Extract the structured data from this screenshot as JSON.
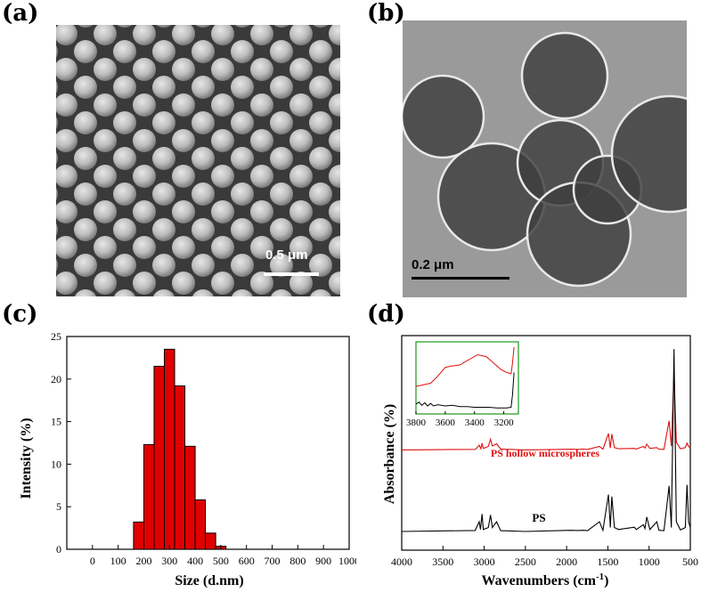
{
  "panels": {
    "a": {
      "label": "(a)",
      "scale_text": "0.5 μm"
    },
    "b": {
      "label": "(b)",
      "scale_text": "0.2 μm"
    },
    "c": {
      "label": "(c)"
    },
    "d": {
      "label": "(d)"
    }
  },
  "colors": {
    "bars": "#e00000",
    "red_spectrum": "#e01010",
    "black_spectrum": "#000000",
    "inset_frame": "#1a9a1a"
  },
  "chart_data": [
    {
      "type": "bar",
      "xlabel": "Size (d.nm)",
      "ylabel": "Intensity (%)",
      "xlim": [
        -100,
        1000
      ],
      "ylim": [
        0,
        25
      ],
      "x_ticks": [
        "0",
        "100",
        "200",
        "300",
        "400",
        "500",
        "600",
        "700",
        "800",
        "900",
        "1000"
      ],
      "y_ticks": [
        "0",
        "5",
        "10",
        "15",
        "20",
        "25"
      ],
      "bin_width": 40,
      "bins": [
        {
          "center": 180,
          "value": 3.2
        },
        {
          "center": 220,
          "value": 12.3
        },
        {
          "center": 260,
          "value": 21.5
        },
        {
          "center": 300,
          "value": 23.5
        },
        {
          "center": 340,
          "value": 19.2
        },
        {
          "center": 380,
          "value": 12.1
        },
        {
          "center": 420,
          "value": 5.8
        },
        {
          "center": 460,
          "value": 1.9
        },
        {
          "center": 500,
          "value": 0.35
        }
      ]
    },
    {
      "type": "line",
      "xlabel": "Wavenumbers (cm",
      "xlabel_sup": "-1",
      "xlabel_close": ")",
      "ylabel": "Absorbance (%)",
      "xlim": [
        4000,
        500
      ],
      "x_ticks": [
        "4000",
        "3500",
        "3000",
        "2500",
        "2000",
        "1500",
        "1000",
        "500"
      ],
      "series": [
        {
          "name": "PS hollow microspheres",
          "offset": 0.42,
          "points": [
            [
              4000,
              0
            ],
            [
              3110,
              0.003
            ],
            [
              3085,
              0.012
            ],
            [
              3060,
              0.025
            ],
            [
              3040,
              0.006
            ],
            [
              3026,
              0.035
            ],
            [
              3010,
              0.008
            ],
            [
              2950,
              0.018
            ],
            [
              2923,
              0.055
            ],
            [
              2900,
              0.02
            ],
            [
              2850,
              0.032
            ],
            [
              2800,
              0.005
            ],
            [
              2500,
              0
            ],
            [
              1950,
              0.004
            ],
            [
              1870,
              0.003
            ],
            [
              1800,
              0.004
            ],
            [
              1745,
              0.003
            ],
            [
              1602,
              0.018
            ],
            [
              1560,
              0.004
            ],
            [
              1493,
              0.085
            ],
            [
              1470,
              0.01
            ],
            [
              1452,
              0.082
            ],
            [
              1420,
              0.012
            ],
            [
              1370,
              0.006
            ],
            [
              1180,
              0.008
            ],
            [
              1155,
              0.005
            ],
            [
              1070,
              0.018
            ],
            [
              1050,
              0.01
            ],
            [
              1028,
              0.03
            ],
            [
              990,
              0.008
            ],
            [
              906,
              0.012
            ],
            [
              880,
              0.004
            ],
            [
              820,
              0.003
            ],
            [
              757,
              0.15
            ],
            [
              730,
              0.02
            ],
            [
              698,
              0.39
            ],
            [
              670,
              0.04
            ],
            [
              620,
              0.006
            ],
            [
              560,
              0.012
            ],
            [
              540,
              0.035
            ],
            [
              520,
              0.018
            ],
            [
              500,
              0.01
            ]
          ]
        },
        {
          "name": "PS",
          "offset": 0.0,
          "points": [
            [
              4000,
              0
            ],
            [
              3110,
              0.005
            ],
            [
              3083,
              0.03
            ],
            [
              3060,
              0.05
            ],
            [
              3045,
              0.01
            ],
            [
              3026,
              0.09
            ],
            [
              3010,
              0.01
            ],
            [
              2950,
              0.02
            ],
            [
              2923,
              0.085
            ],
            [
              2900,
              0.02
            ],
            [
              2850,
              0.05
            ],
            [
              2800,
              0.004
            ],
            [
              2500,
              0
            ],
            [
              1950,
              0.006
            ],
            [
              1870,
              0.005
            ],
            [
              1800,
              0.006
            ],
            [
              1745,
              0.004
            ],
            [
              1602,
              0.05
            ],
            [
              1560,
              0.006
            ],
            [
              1493,
              0.19
            ],
            [
              1470,
              0.02
            ],
            [
              1452,
              0.18
            ],
            [
              1420,
              0.02
            ],
            [
              1370,
              0.01
            ],
            [
              1180,
              0.022
            ],
            [
              1155,
              0.01
            ],
            [
              1070,
              0.035
            ],
            [
              1050,
              0.015
            ],
            [
              1028,
              0.075
            ],
            [
              990,
              0.01
            ],
            [
              906,
              0.05
            ],
            [
              880,
              0.006
            ],
            [
              820,
              0.004
            ],
            [
              757,
              0.235
            ],
            [
              730,
              0.02
            ],
            [
              698,
              0.94
            ],
            [
              670,
              0.05
            ],
            [
              620,
              0.008
            ],
            [
              560,
              0.02
            ],
            [
              540,
              0.24
            ],
            [
              520,
              0.05
            ],
            [
              500,
              0.02
            ]
          ]
        }
      ],
      "inset": {
        "xlim": [
          3800,
          3100
        ],
        "x_ticks": [
          "3800",
          "3600",
          "3400",
          "3200"
        ],
        "red_points": [
          [
            3800,
            0.38
          ],
          [
            3760,
            0.4
          ],
          [
            3700,
            0.43
          ],
          [
            3660,
            0.52
          ],
          [
            3600,
            0.68
          ],
          [
            3560,
            0.7
          ],
          [
            3500,
            0.72
          ],
          [
            3440,
            0.8
          ],
          [
            3380,
            0.88
          ],
          [
            3320,
            0.85
          ],
          [
            3270,
            0.75
          ],
          [
            3220,
            0.65
          ],
          [
            3180,
            0.6
          ],
          [
            3150,
            0.58
          ],
          [
            3140,
            0.75
          ],
          [
            3130,
            1.0
          ]
        ],
        "black_points": [
          [
            3800,
            0.1
          ],
          [
            3780,
            0.13
          ],
          [
            3760,
            0.08
          ],
          [
            3740,
            0.12
          ],
          [
            3720,
            0.07
          ],
          [
            3700,
            0.11
          ],
          [
            3680,
            0.07
          ],
          [
            3650,
            0.09
          ],
          [
            3600,
            0.07
          ],
          [
            3550,
            0.08
          ],
          [
            3500,
            0.06
          ],
          [
            3450,
            0.06
          ],
          [
            3400,
            0.05
          ],
          [
            3350,
            0.05
          ],
          [
            3300,
            0.05
          ],
          [
            3250,
            0.04
          ],
          [
            3180,
            0.04
          ],
          [
            3150,
            0.05
          ],
          [
            3140,
            0.25
          ],
          [
            3130,
            0.6
          ]
        ]
      }
    }
  ]
}
